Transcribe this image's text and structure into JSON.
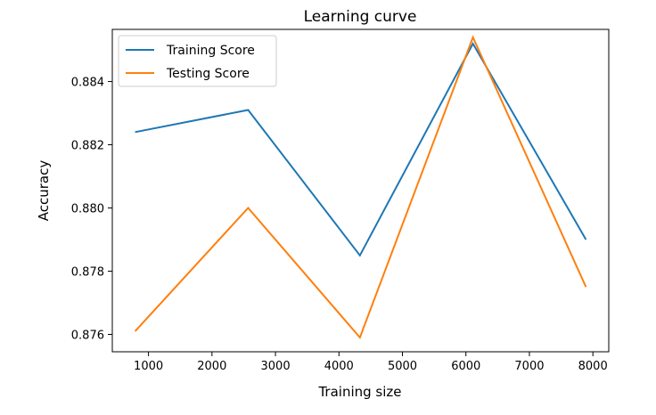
{
  "chart_data": {
    "type": "line",
    "title": "Learning curve",
    "xlabel": "Training size",
    "ylabel": "Accuracy",
    "x": [
      790,
      2570,
      4330,
      6110,
      7890
    ],
    "series": [
      {
        "name": "Training Score",
        "color": "#1f77b4",
        "values": [
          0.8824,
          0.8831,
          0.8785,
          0.8852,
          0.879
        ]
      },
      {
        "name": "Testing Score",
        "color": "#ff7f0e",
        "values": [
          0.8761,
          0.88,
          0.8759,
          0.8854,
          0.8775
        ]
      }
    ],
    "xlim": [
      430,
      8250
    ],
    "ylim": [
      0.87545,
      0.88565
    ],
    "xticks": [
      1000,
      2000,
      3000,
      4000,
      5000,
      6000,
      7000,
      8000
    ],
    "xtick_labels": [
      "1000",
      "2000",
      "3000",
      "4000",
      "5000",
      "6000",
      "7000",
      "8000"
    ],
    "yticks": [
      0.876,
      0.878,
      0.88,
      0.882,
      0.884
    ],
    "ytick_labels": [
      "0.876",
      "0.878",
      "0.880",
      "0.882",
      "0.884"
    ],
    "legend": "top-left",
    "grid": false
  }
}
